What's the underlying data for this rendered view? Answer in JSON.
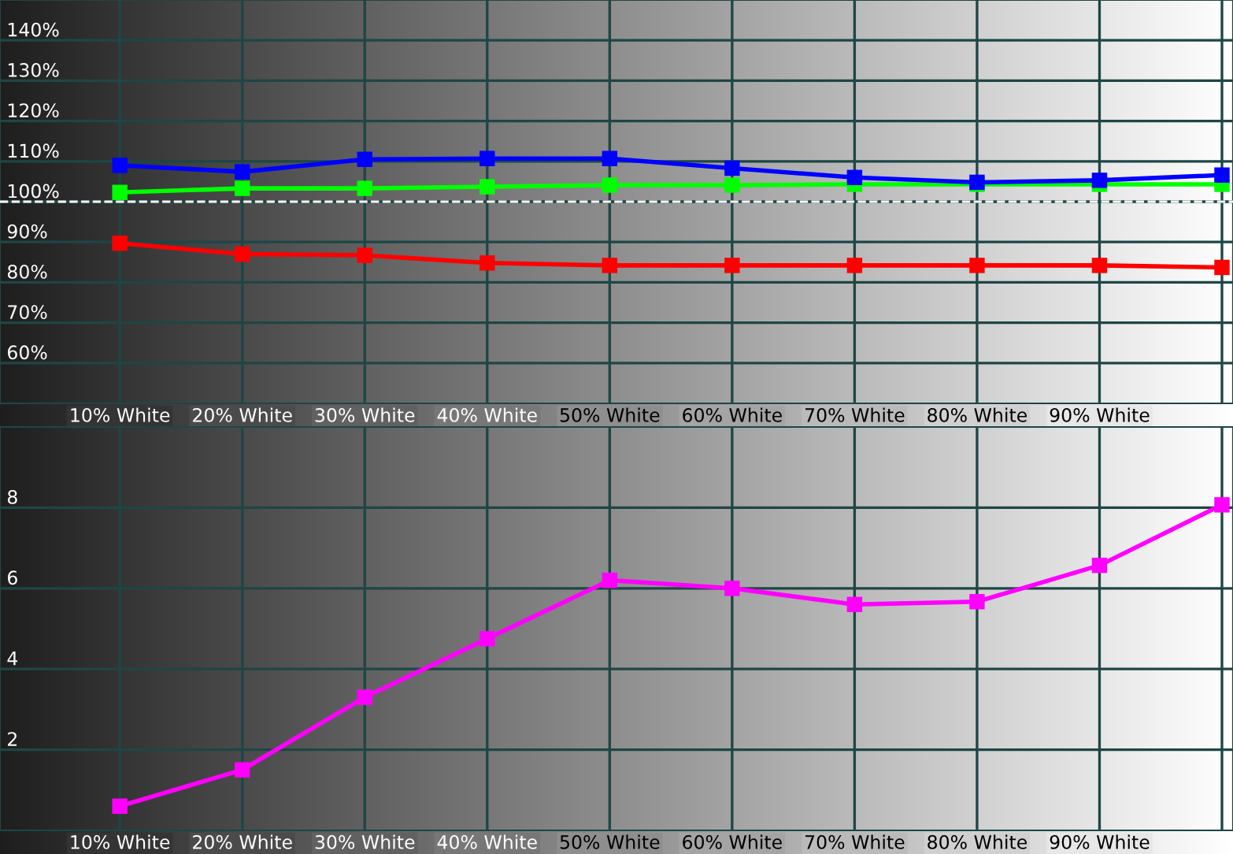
{
  "chart_data": [
    {
      "type": "line",
      "categories": [
        "10% White",
        "20% White",
        "30% White",
        "40% White",
        "50% White",
        "60% White",
        "70% White",
        "80% White",
        "90% White",
        null
      ],
      "series": [
        {
          "color": "#ff0000",
          "values": [
            89.7,
            87.0,
            86.7,
            84.8,
            84.2,
            84.2,
            84.2,
            84.2,
            84.2,
            83.7
          ]
        },
        {
          "color": "#00ff00",
          "values": [
            102.3,
            103.3,
            103.3,
            103.7,
            104.1,
            104.1,
            104.3,
            104.3,
            104.3,
            104.3
          ]
        },
        {
          "color": "#0000ff",
          "values": [
            109.0,
            107.4,
            110.5,
            110.7,
            110.7,
            108.3,
            106.0,
            104.8,
            105.3,
            106.6
          ]
        }
      ],
      "ylim": [
        50,
        150
      ],
      "yticks": [
        {
          "value": 60,
          "label": "60%"
        },
        {
          "value": 70,
          "label": "70%"
        },
        {
          "value": 80,
          "label": "80%"
        },
        {
          "value": 90,
          "label": "90%"
        },
        {
          "value": 100,
          "label": "100%"
        },
        {
          "value": 110,
          "label": "110%"
        },
        {
          "value": 120,
          "label": "120%"
        },
        {
          "value": 130,
          "label": "130%"
        },
        {
          "value": 140,
          "label": "140%"
        }
      ],
      "ref_lines": [
        {
          "axis": "y",
          "value": 100,
          "color": "#ffffff",
          "line_style": "dashed"
        }
      ],
      "grid": true,
      "marker": "square",
      "line_style": "solid"
    },
    {
      "type": "line",
      "categories": [
        "10% White",
        "20% White",
        "30% White",
        "40% White",
        "50% White",
        "60% White",
        "70% White",
        "80% White",
        "90% White",
        null
      ],
      "series": [
        {
          "color": "#ff00ff",
          "values": [
            0.6,
            1.5,
            3.3,
            4.75,
            6.2,
            6.0,
            5.6,
            5.67,
            6.57,
            8.07
          ]
        }
      ],
      "ylim": [
        0,
        10
      ],
      "yticks": [
        2,
        4,
        6,
        8
      ],
      "grid": true,
      "marker": "square",
      "line_style": "solid"
    }
  ]
}
